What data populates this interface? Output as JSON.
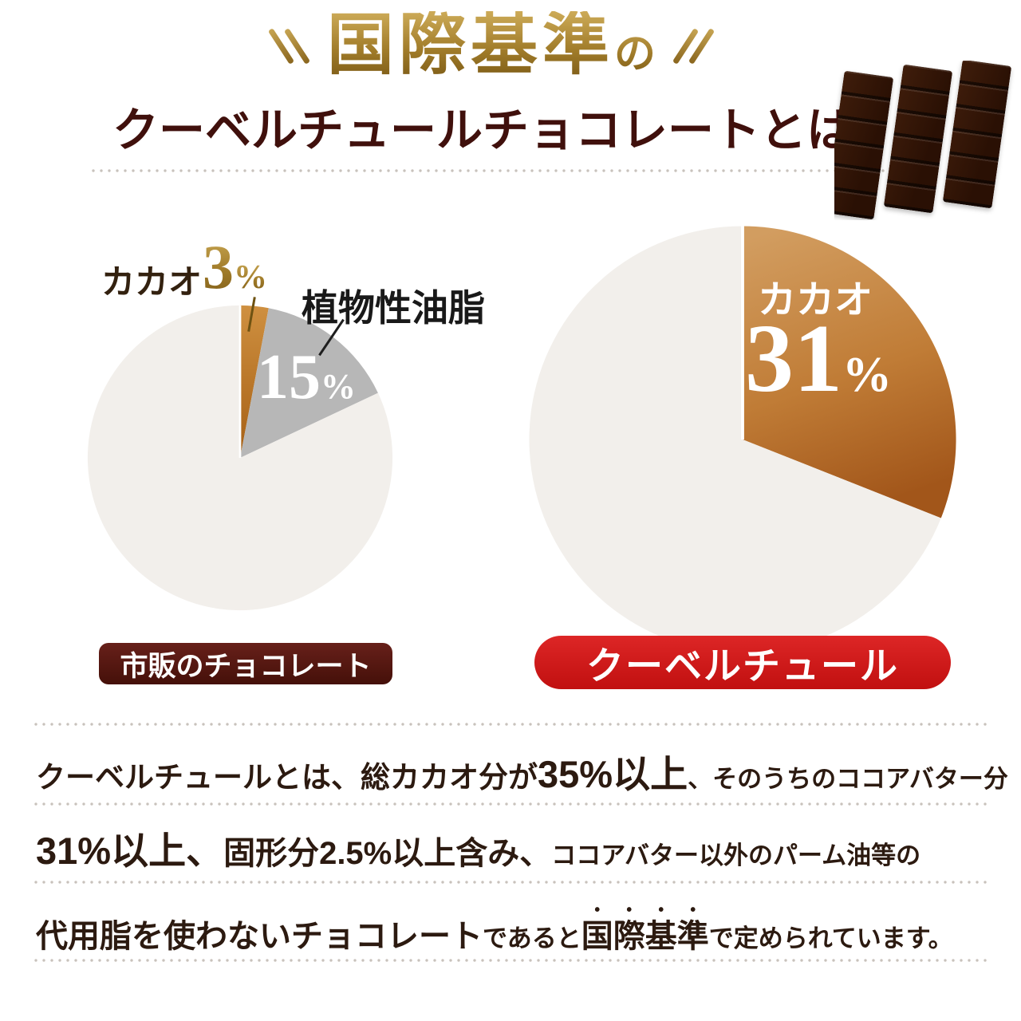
{
  "header": {
    "eyebrow_main": "国際基準",
    "eyebrow_particle": "の",
    "title": "クーベルチュールチョコレートとは"
  },
  "left_pie": {
    "cacao_label": "カカオ",
    "cacao_value": "3",
    "cacao_unit": "%",
    "oil_label": "植物性油脂",
    "oil_value": "15",
    "oil_unit": "%",
    "badge": "市販のチョコレート"
  },
  "right_pie": {
    "cacao_label": "カカオ",
    "cacao_value": "31",
    "cacao_unit": "%",
    "badge": "クーベルチュール"
  },
  "description": {
    "line1": {
      "s1": "クーベルチュールとは、",
      "s2": "総カカオ分が",
      "s3": "35%以上",
      "s4": "、そのうちのココアバター分"
    },
    "line2": {
      "s1": "31%以上、",
      "s2": "固形分2.5%以上含み、",
      "s3": "ココアバター以外のパーム油等の"
    },
    "line3": {
      "s1": "代用脂を使わないチョコレート",
      "s2": "であると",
      "s3": "国際基準",
      "s4": "で定められています。"
    }
  },
  "chart_data": [
    {
      "type": "pie",
      "title": "市販のチョコレート",
      "direction": "clockwise",
      "start_angle_deg": 0,
      "legend_position": "none",
      "slices": [
        {
          "label": "カカオ",
          "display": "3%",
          "value_pct": 3,
          "color": "#bf7d26"
        },
        {
          "label": "植物性油脂",
          "display": "15%",
          "value_pct": 15,
          "color": "#b7b7b7"
        },
        {
          "label": "",
          "display": "",
          "value_pct": 82,
          "color": "#f2efeb"
        }
      ]
    },
    {
      "type": "pie",
      "title": "クーベルチュール",
      "direction": "clockwise",
      "start_angle_deg": 0,
      "legend_position": "none",
      "slices": [
        {
          "label": "カカオ",
          "display": "31%",
          "value_pct": 31,
          "color": "#b87231"
        },
        {
          "label": "",
          "display": "",
          "value_pct": 69,
          "color": "#f2efeb"
        }
      ]
    }
  ],
  "colors": {
    "eyebrow_gold": "#a17c2a",
    "title_brown": "#40100c",
    "copper_slice_top": "#d29d60",
    "copper_slice_bottom": "#a2561a",
    "small_slice_top": "#cf9040",
    "small_slice_bottom": "#a55f14",
    "gray_slice": "#b7b7b7",
    "pie_remainder": "#f2efeb",
    "left_badge": "#571410",
    "right_badge": "#cd1414",
    "body_text": "#2c1a10"
  }
}
